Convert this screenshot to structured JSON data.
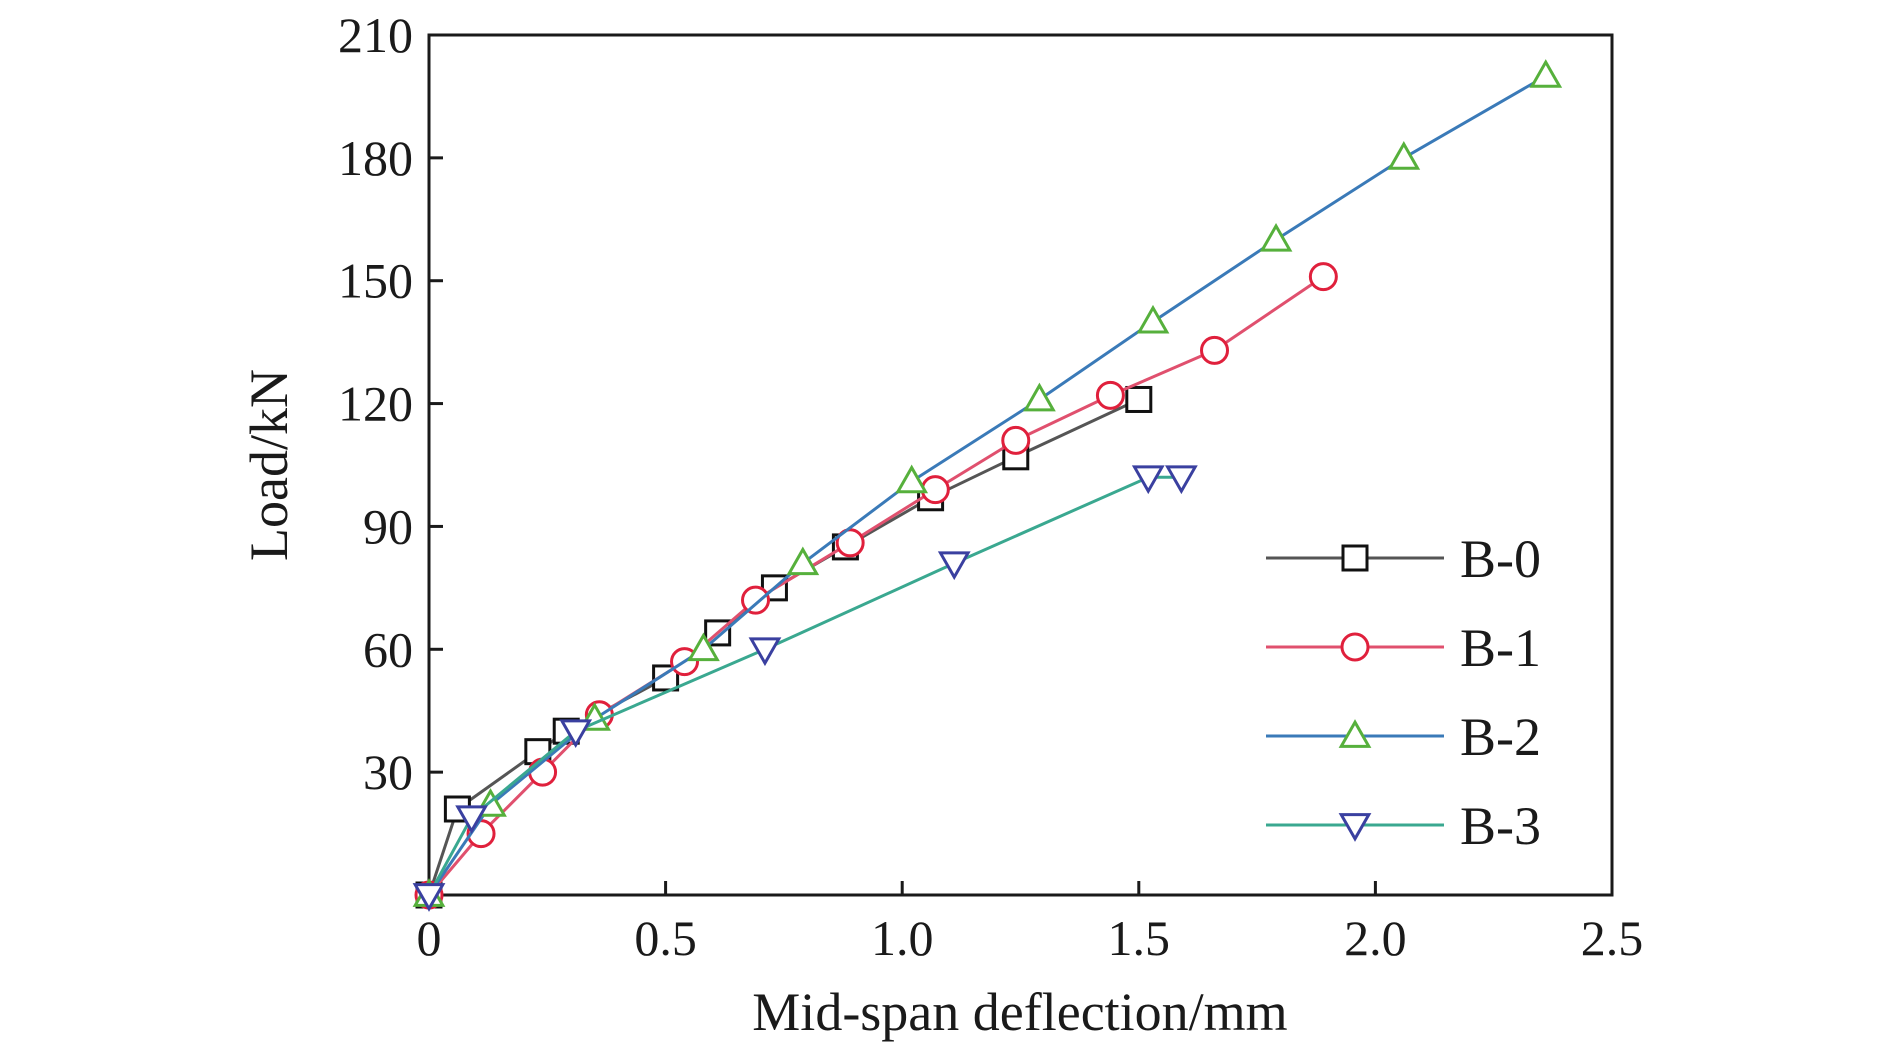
{
  "chart_data": {
    "type": "line",
    "xlabel": "Mid-span deflection/mm",
    "ylabel": "Load/kN",
    "xlim": [
      0,
      2.5
    ],
    "ylim": [
      0,
      210
    ],
    "x_ticks": [
      0,
      0.5,
      1.0,
      1.5,
      2.0,
      2.5
    ],
    "x_tick_labels": [
      "0",
      "0.5",
      "1.0",
      "1.5",
      "2.0",
      "2.5"
    ],
    "y_ticks": [
      30,
      60,
      90,
      120,
      150,
      180,
      210
    ],
    "y_tick_labels": [
      "30",
      "60",
      "90",
      "120",
      "150",
      "180",
      "210"
    ],
    "grid": false,
    "legend_position": "bottom-right",
    "series": [
      {
        "name": "B-0",
        "marker": "square",
        "line_color": "#555555",
        "marker_color": "#111111",
        "x": [
          0.0,
          0.06,
          0.23,
          0.29,
          0.5,
          0.61,
          0.73,
          0.88,
          1.06,
          1.24,
          1.5
        ],
        "y": [
          0,
          21,
          35,
          40,
          53,
          64,
          75,
          85,
          97,
          107,
          121
        ]
      },
      {
        "name": "B-1",
        "marker": "circle",
        "line_color": "#e0506e",
        "marker_color": "#e0203c",
        "x": [
          0.0,
          0.11,
          0.24,
          0.36,
          0.54,
          0.69,
          0.89,
          1.07,
          1.24,
          1.44,
          1.66,
          1.89
        ],
        "y": [
          0,
          15,
          30,
          44,
          57,
          72,
          86,
          99,
          111,
          122,
          133,
          151
        ]
      },
      {
        "name": "B-2",
        "marker": "triangle-up",
        "line_color": "#3a7ab8",
        "marker_color": "#56b03c",
        "x": [
          0.0,
          0.13,
          0.35,
          0.58,
          0.79,
          1.02,
          1.29,
          1.53,
          1.79,
          2.06,
          2.36
        ],
        "y": [
          0,
          22,
          43,
          60,
          81,
          101,
          121,
          140,
          160,
          180,
          200
        ]
      },
      {
        "name": "B-3",
        "marker": "triangle-down",
        "line_color": "#3aa890",
        "marker_color": "#3a40a0",
        "x": [
          0.0,
          0.09,
          0.31,
          0.71,
          1.11,
          1.52,
          1.59
        ],
        "y": [
          0,
          19,
          40,
          60,
          81,
          102,
          102
        ]
      }
    ]
  }
}
